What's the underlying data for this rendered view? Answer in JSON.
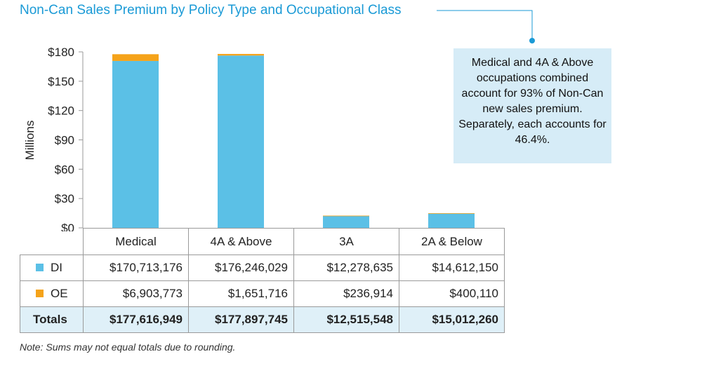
{
  "title": "Non-Can Sales Premium by Policy Type and Occupational Class",
  "callout": "Medical and 4A & Above occupations combined account for 93% of Non-Can new sales premium. Separately, each accounts for 46.4%.",
  "note": "Note: Sums may not equal totals due to rounding.",
  "colors": {
    "title": "#1a9ad6",
    "di": "#5bc0e6",
    "oe": "#f5a31a",
    "callout_bg": "#d6ecf7",
    "totals_bg": "#dff0f8"
  },
  "chart_data": {
    "type": "bar",
    "stacked": true,
    "title": "Non-Can Sales Premium by Policy Type and Occupational Class",
    "ylabel": "Millions",
    "xlabel": "",
    "ylim": [
      0,
      180
    ],
    "yticks": [
      0,
      30,
      60,
      90,
      120,
      150,
      180
    ],
    "ytick_labels": [
      "$0",
      "$30",
      "$60",
      "$90",
      "$120",
      "$150",
      "$180"
    ],
    "grid": false,
    "categories": [
      "Medical",
      "4A & Above",
      "3A",
      "2A & Below"
    ],
    "series": [
      {
        "name": "DI",
        "values": [
          170.713176,
          176.246029,
          12.278635,
          14.61215
        ]
      },
      {
        "name": "OE",
        "values": [
          6.903773,
          1.651716,
          0.236914,
          0.40011
        ]
      }
    ]
  },
  "table": {
    "rows": [
      {
        "label": "DI",
        "cells": [
          "$170,713,176",
          "$176,246,029",
          "$12,278,635",
          "$14,612,150"
        ]
      },
      {
        "label": "OE",
        "cells": [
          "$6,903,773",
          "$1,651,716",
          "$236,914",
          "$400,110"
        ]
      }
    ],
    "totals": {
      "label": "Totals",
      "cells": [
        "$177,616,949",
        "$177,897,745",
        "$12,515,548",
        "$15,012,260"
      ]
    }
  }
}
